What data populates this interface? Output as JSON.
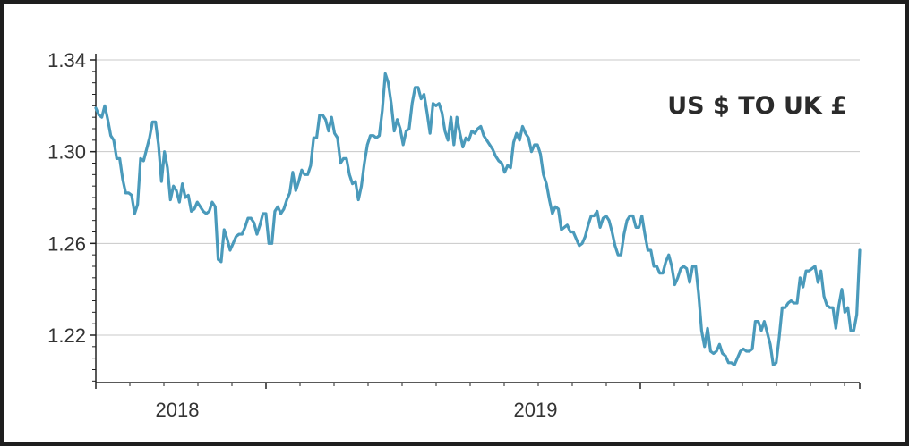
{
  "chart_data": {
    "type": "line",
    "title": "US $ TO UK £",
    "xlabel": "",
    "ylabel": "",
    "ylim": [
      1.2,
      1.34
    ],
    "grid": "horizontal",
    "yticks": [
      1.22,
      1.26,
      1.3,
      1.34
    ],
    "ytick_labels": [
      "1.22",
      "1.26",
      "1.30",
      "1.34"
    ],
    "xticks": [
      "2018",
      "2019"
    ],
    "line_color": "#4a9abb",
    "series": [
      {
        "values": [
          1.319,
          1.316,
          1.315,
          1.32,
          1.314,
          1.307,
          1.305,
          1.297,
          1.297,
          1.288,
          1.282,
          1.282,
          1.281,
          1.273,
          1.277,
          1.297,
          1.296,
          1.301,
          1.306,
          1.313,
          1.313,
          1.303,
          1.287,
          1.3,
          1.293,
          1.279,
          1.285,
          1.283,
          1.278,
          1.286,
          1.28,
          1.281,
          1.274,
          1.275,
          1.278,
          1.276,
          1.274,
          1.273,
          1.274,
          1.278,
          1.276,
          1.253,
          1.252,
          1.266,
          1.262,
          1.257,
          1.26,
          1.263,
          1.264,
          1.264,
          1.267,
          1.271,
          1.271,
          1.269,
          1.264,
          1.268,
          1.273,
          1.273,
          1.26,
          1.26,
          1.274,
          1.276,
          1.273,
          1.275,
          1.279,
          1.282,
          1.291,
          1.283,
          1.287,
          1.292,
          1.29,
          1.29,
          1.294,
          1.306,
          1.306,
          1.316,
          1.316,
          1.314,
          1.309,
          1.315,
          1.308,
          1.306,
          1.295,
          1.297,
          1.297,
          1.29,
          1.286,
          1.287,
          1.279,
          1.285,
          1.295,
          1.303,
          1.307,
          1.307,
          1.306,
          1.307,
          1.318,
          1.334,
          1.33,
          1.321,
          1.309,
          1.314,
          1.31,
          1.303,
          1.309,
          1.31,
          1.321,
          1.328,
          1.328,
          1.323,
          1.325,
          1.317,
          1.308,
          1.321,
          1.32,
          1.321,
          1.317,
          1.309,
          1.305,
          1.315,
          1.303,
          1.315,
          1.308,
          1.302,
          1.306,
          1.305,
          1.309,
          1.308,
          1.31,
          1.311,
          1.307,
          1.305,
          1.303,
          1.301,
          1.298,
          1.296,
          1.295,
          1.291,
          1.294,
          1.293,
          1.304,
          1.308,
          1.305,
          1.311,
          1.308,
          1.306,
          1.3,
          1.303,
          1.303,
          1.299,
          1.29,
          1.286,
          1.279,
          1.273,
          1.276,
          1.275,
          1.266,
          1.267,
          1.268,
          1.265,
          1.265,
          1.262,
          1.259,
          1.26,
          1.263,
          1.268,
          1.272,
          1.272,
          1.274,
          1.267,
          1.271,
          1.272,
          1.27,
          1.265,
          1.259,
          1.255,
          1.255,
          1.264,
          1.27,
          1.272,
          1.272,
          1.267,
          1.267,
          1.272,
          1.264,
          1.257,
          1.257,
          1.25,
          1.25,
          1.247,
          1.247,
          1.252,
          1.255,
          1.25,
          1.242,
          1.245,
          1.249,
          1.25,
          1.249,
          1.243,
          1.25,
          1.25,
          1.238,
          1.222,
          1.215,
          1.223,
          1.213,
          1.212,
          1.213,
          1.216,
          1.212,
          1.211,
          1.208,
          1.208,
          1.207,
          1.21,
          1.213,
          1.214,
          1.213,
          1.213,
          1.214,
          1.226,
          1.226,
          1.222,
          1.226,
          1.221,
          1.216,
          1.207,
          1.208,
          1.219,
          1.232,
          1.232,
          1.234,
          1.235,
          1.234,
          1.234,
          1.245,
          1.241,
          1.248,
          1.248,
          1.249,
          1.25,
          1.243,
          1.248,
          1.237,
          1.233,
          1.232,
          1.232,
          1.223,
          1.233,
          1.24,
          1.23,
          1.232,
          1.222,
          1.222,
          1.229,
          1.257
        ]
      }
    ]
  }
}
